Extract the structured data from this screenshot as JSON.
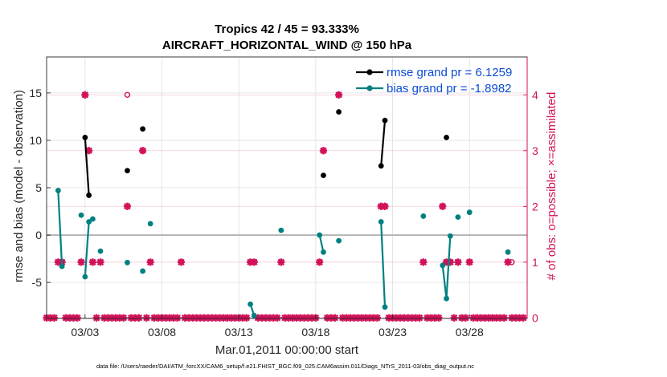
{
  "chart_data": {
    "type": "scatter",
    "title": "Tropics 42 / 45 = 93.333%",
    "subtitle": "AIRCRAFT_HORIZONTAL_WIND @ 150 hPa",
    "xlabel": "Mar.01,2011 00:00:00 start",
    "ylabel": "rmse and bias (model - observation)",
    "y2label": "# of obs: o=possible; ×=assimilated",
    "footnote": "data file: /Users/raeder/DAI/ATM_forcXX/CAM6_setup/f.e21.FHIST_BGC.f09_025.CAM6assim.011/Diags_NTrS_2011-03/obs_diag_output.nc",
    "xlim": [
      0.5,
      31.75
    ],
    "ylim": [
      -8.8,
      18.8
    ],
    "y2lim": [
      -0.01,
      4.68
    ],
    "xticks": [
      3,
      8,
      13,
      18,
      23,
      28
    ],
    "xticklabels": [
      "03/03",
      "03/08",
      "03/13",
      "03/18",
      "03/23",
      "03/28"
    ],
    "yticks": [
      -5,
      0,
      5,
      10,
      15
    ],
    "yticklabels": [
      "-5",
      "0",
      "5",
      "10",
      "15"
    ],
    "y2ticks": [
      0,
      1,
      2,
      3,
      4
    ],
    "y2ticklabels": [
      "0",
      "1",
      "2",
      "3",
      "4"
    ],
    "grid": true,
    "legend_position": "top-right",
    "colors": {
      "rmse": "#000000",
      "bias": "#008080",
      "obs": "#d1125a",
      "zero": "#b3b3b3",
      "legend_text": "#0a4bd6"
    },
    "series": [
      {
        "name": "rmse grand pr = 6.1259",
        "marker": "dot",
        "points": [
          [
            3.0,
            10.3
          ],
          [
            3.25,
            4.2
          ],
          [
            5.75,
            6.8
          ],
          [
            6.75,
            11.2
          ],
          [
            18.5,
            6.3
          ],
          [
            19.5,
            13.0
          ],
          [
            22.25,
            7.3
          ],
          [
            22.5,
            12.1
          ],
          [
            26.5,
            10.3
          ]
        ],
        "segments": [
          [
            [
              3.0,
              10.3
            ],
            [
              3.25,
              4.2
            ]
          ],
          [
            [
              22.25,
              7.3
            ],
            [
              22.5,
              12.1
            ]
          ]
        ]
      },
      {
        "name": "bias grand pr = -1.8982",
        "marker": "dot",
        "points": [
          [
            1.25,
            4.7
          ],
          [
            1.5,
            -3.3
          ],
          [
            2.75,
            2.1
          ],
          [
            3.0,
            -4.4
          ],
          [
            3.25,
            1.4
          ],
          [
            3.5,
            1.7
          ],
          [
            4.0,
            -1.7
          ],
          [
            5.75,
            -2.9
          ],
          [
            6.75,
            -3.8
          ],
          [
            7.25,
            1.2
          ],
          [
            9.25,
            -8.9
          ],
          [
            13.75,
            -7.3
          ],
          [
            14.0,
            -8.5
          ],
          [
            15.75,
            0.5
          ],
          [
            18.25,
            0.0
          ],
          [
            18.5,
            -1.8
          ],
          [
            19.5,
            -0.6
          ],
          [
            22.25,
            1.4
          ],
          [
            22.5,
            -7.6
          ],
          [
            25.0,
            2.0
          ],
          [
            26.25,
            -3.2
          ],
          [
            26.5,
            -6.7
          ],
          [
            26.75,
            -0.1
          ],
          [
            27.25,
            1.9
          ],
          [
            28.0,
            2.4
          ],
          [
            30.5,
            -1.8
          ]
        ],
        "segments": [
          [
            [
              1.25,
              4.7
            ],
            [
              1.5,
              -3.3
            ]
          ],
          [
            [
              3.0,
              -4.4
            ],
            [
              3.25,
              1.4
            ]
          ],
          [
            [
              13.75,
              -7.3
            ],
            [
              14.0,
              -8.5
            ]
          ],
          [
            [
              18.25,
              0.0
            ],
            [
              18.5,
              -1.8
            ]
          ],
          [
            [
              22.25,
              1.4
            ],
            [
              22.5,
              -7.6
            ]
          ],
          [
            [
              26.25,
              -3.2
            ],
            [
              26.5,
              -6.7
            ]
          ],
          [
            [
              26.5,
              -6.7
            ],
            [
              26.75,
              -0.1
            ]
          ]
        ]
      },
      {
        "name": "obs possible",
        "marker": "o",
        "axis": "right",
        "zero_count_range": [
          0.5,
          31.5
        ],
        "points": [
          [
            1.25,
            1
          ],
          [
            1.5,
            1
          ],
          [
            2.75,
            1
          ],
          [
            3.0,
            4
          ],
          [
            3.25,
            3
          ],
          [
            3.5,
            1
          ],
          [
            4.0,
            1
          ],
          [
            5.75,
            4
          ],
          [
            6.75,
            3
          ],
          [
            7.25,
            1
          ],
          [
            9.25,
            1
          ],
          [
            13.75,
            1
          ],
          [
            14.0,
            1
          ],
          [
            15.75,
            1
          ],
          [
            18.25,
            1
          ],
          [
            18.5,
            3
          ],
          [
            19.5,
            4
          ],
          [
            22.25,
            2
          ],
          [
            22.5,
            2
          ],
          [
            25.0,
            1
          ],
          [
            26.25,
            2
          ],
          [
            26.5,
            1
          ],
          [
            26.75,
            1
          ],
          [
            27.25,
            1
          ],
          [
            28.0,
            1
          ],
          [
            30.5,
            1
          ],
          [
            30.75,
            1
          ]
        ]
      },
      {
        "name": "obs assimilated",
        "marker": "x",
        "axis": "right",
        "zero_count_range": [
          0.5,
          31.5
        ],
        "points": [
          [
            1.25,
            1
          ],
          [
            1.5,
            1
          ],
          [
            2.75,
            1
          ],
          [
            3.0,
            4
          ],
          [
            3.25,
            3
          ],
          [
            3.5,
            1
          ],
          [
            4.0,
            1
          ],
          [
            5.75,
            2
          ],
          [
            6.75,
            3
          ],
          [
            7.25,
            1
          ],
          [
            9.25,
            1
          ],
          [
            13.75,
            1
          ],
          [
            14.0,
            1
          ],
          [
            15.75,
            1
          ],
          [
            18.25,
            1
          ],
          [
            18.5,
            3
          ],
          [
            19.5,
            4
          ],
          [
            22.25,
            2
          ],
          [
            22.5,
            2
          ],
          [
            25.0,
            1
          ],
          [
            26.25,
            2
          ],
          [
            26.5,
            1
          ],
          [
            26.75,
            1
          ],
          [
            27.25,
            1
          ],
          [
            28.0,
            1
          ],
          [
            30.5,
            1
          ]
        ]
      }
    ]
  }
}
